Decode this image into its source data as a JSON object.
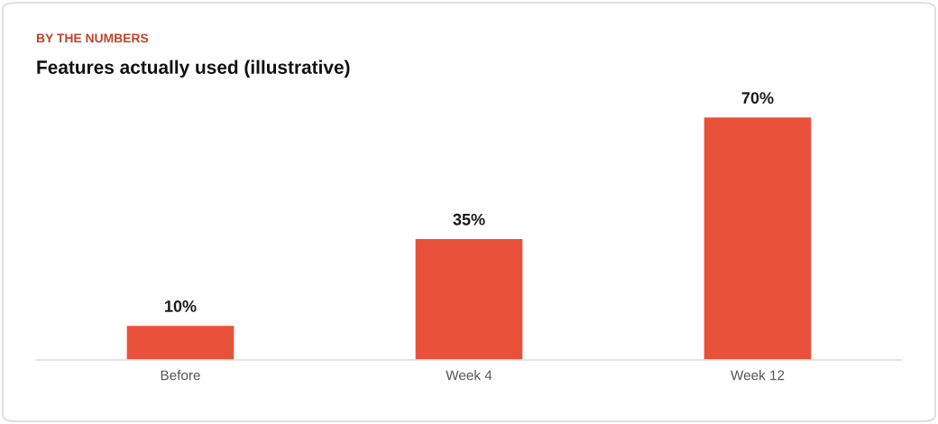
{
  "chart_data": {
    "type": "bar",
    "subtitle": "BY THE NUMBERS",
    "title": "Features actually used (illustrative)",
    "categories": [
      "Before",
      "Week 4",
      "Week 12"
    ],
    "values": [
      10,
      35,
      70
    ],
    "color": "#e8503a",
    "value_labels": [
      "10%",
      "35%",
      "70%"
    ]
  }
}
